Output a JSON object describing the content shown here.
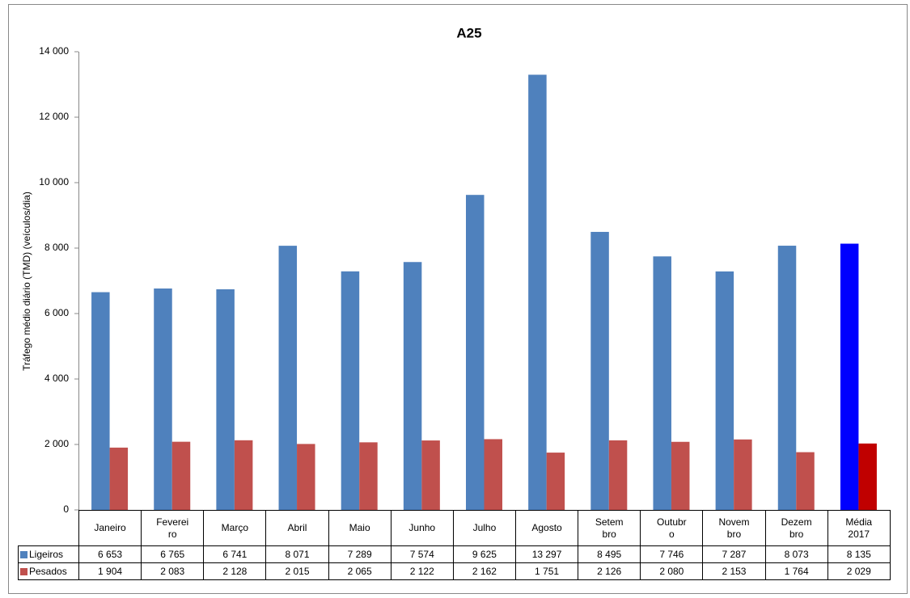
{
  "chart_data": {
    "type": "bar",
    "title": "A25",
    "y_label": "Tráfego médio diário (TMD) (veículos/dia)",
    "categories": [
      "Janeiro",
      "Fevereiro",
      "Março",
      "Abril",
      "Maio",
      "Junho",
      "Julho",
      "Agosto",
      "Setembro",
      "Outubro",
      "Novembro",
      "Dezembro",
      "Média 2017"
    ],
    "series": [
      {
        "name": "Ligeiros",
        "color": "#4f81bd",
        "colors": [
          "#4f81bd",
          "#4f81bd",
          "#4f81bd",
          "#4f81bd",
          "#4f81bd",
          "#4f81bd",
          "#4f81bd",
          "#4f81bd",
          "#4f81bd",
          "#4f81bd",
          "#4f81bd",
          "#4f81bd",
          "#0000ff"
        ],
        "values": [
          6653,
          6765,
          6741,
          8071,
          7289,
          7574,
          9625,
          13297,
          8495,
          7746,
          7287,
          8073,
          8135
        ],
        "value_labels": [
          "6 653",
          "6 765",
          "6 741",
          "8 071",
          "7 289",
          "7 574",
          "9 625",
          "13 297",
          "8 495",
          "7 746",
          "7 287",
          "8 073",
          "8 135"
        ]
      },
      {
        "name": "Pesados",
        "color": "#c0504d",
        "colors": [
          "#c0504d",
          "#c0504d",
          "#c0504d",
          "#c0504d",
          "#c0504d",
          "#c0504d",
          "#c0504d",
          "#c0504d",
          "#c0504d",
          "#c0504d",
          "#c0504d",
          "#c0504d",
          "#c00000"
        ],
        "values": [
          1904,
          2083,
          2128,
          2015,
          2065,
          2122,
          2162,
          1751,
          2126,
          2080,
          2153,
          1764,
          2029
        ],
        "value_labels": [
          "1 904",
          "2 083",
          "2 128",
          "2 015",
          "2 065",
          "2 122",
          "2 162",
          "1 751",
          "2 126",
          "2 080",
          "2 153",
          "1 764",
          "2 029"
        ]
      }
    ],
    "ylim": [
      0,
      14000
    ],
    "yticks": [
      0,
      {
        "value": 2000,
        "label": "2 000"
      },
      {
        "value": 4000,
        "label": "4 000"
      },
      {
        "value": 6000,
        "label": "6 000"
      },
      {
        "value": 8000,
        "label": "8 000"
      },
      {
        "value": 10000,
        "label": "10 000"
      },
      {
        "value": 12000,
        "label": "12 000"
      },
      {
        "value": 14000,
        "label": "14 000"
      }
    ],
    "grid": false
  }
}
